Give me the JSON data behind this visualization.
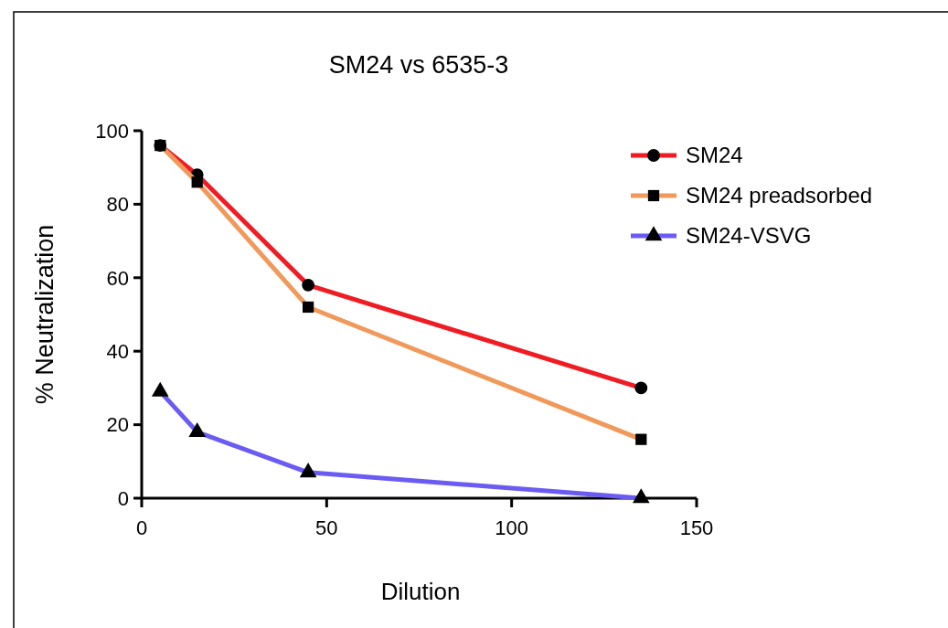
{
  "chart_data": {
    "type": "line",
    "title": "SM24 vs 6535-3",
    "xlabel": "Dilution",
    "ylabel": "% Neutralization",
    "x": [
      5,
      15,
      45,
      135
    ],
    "series": [
      {
        "name": "SM24",
        "color": "#f01c24",
        "values": [
          96,
          88,
          58,
          30
        ],
        "marker": "circle"
      },
      {
        "name": "SM24 preadsorbed",
        "color": "#f0995a",
        "values": [
          96,
          86,
          52,
          16
        ],
        "marker": "square"
      },
      {
        "name": "SM24-VSVG",
        "color": "#6a5cf2",
        "values": [
          29,
          18,
          7,
          0
        ],
        "marker": "triangle"
      }
    ],
    "xlim": [
      0,
      150
    ],
    "xticks": [
      0,
      50,
      100,
      150
    ],
    "ylim": [
      0,
      100
    ],
    "yticks": [
      0,
      20,
      40,
      60,
      80,
      100
    ],
    "grid": false,
    "legend": "top right",
    "line_style": "solid"
  }
}
